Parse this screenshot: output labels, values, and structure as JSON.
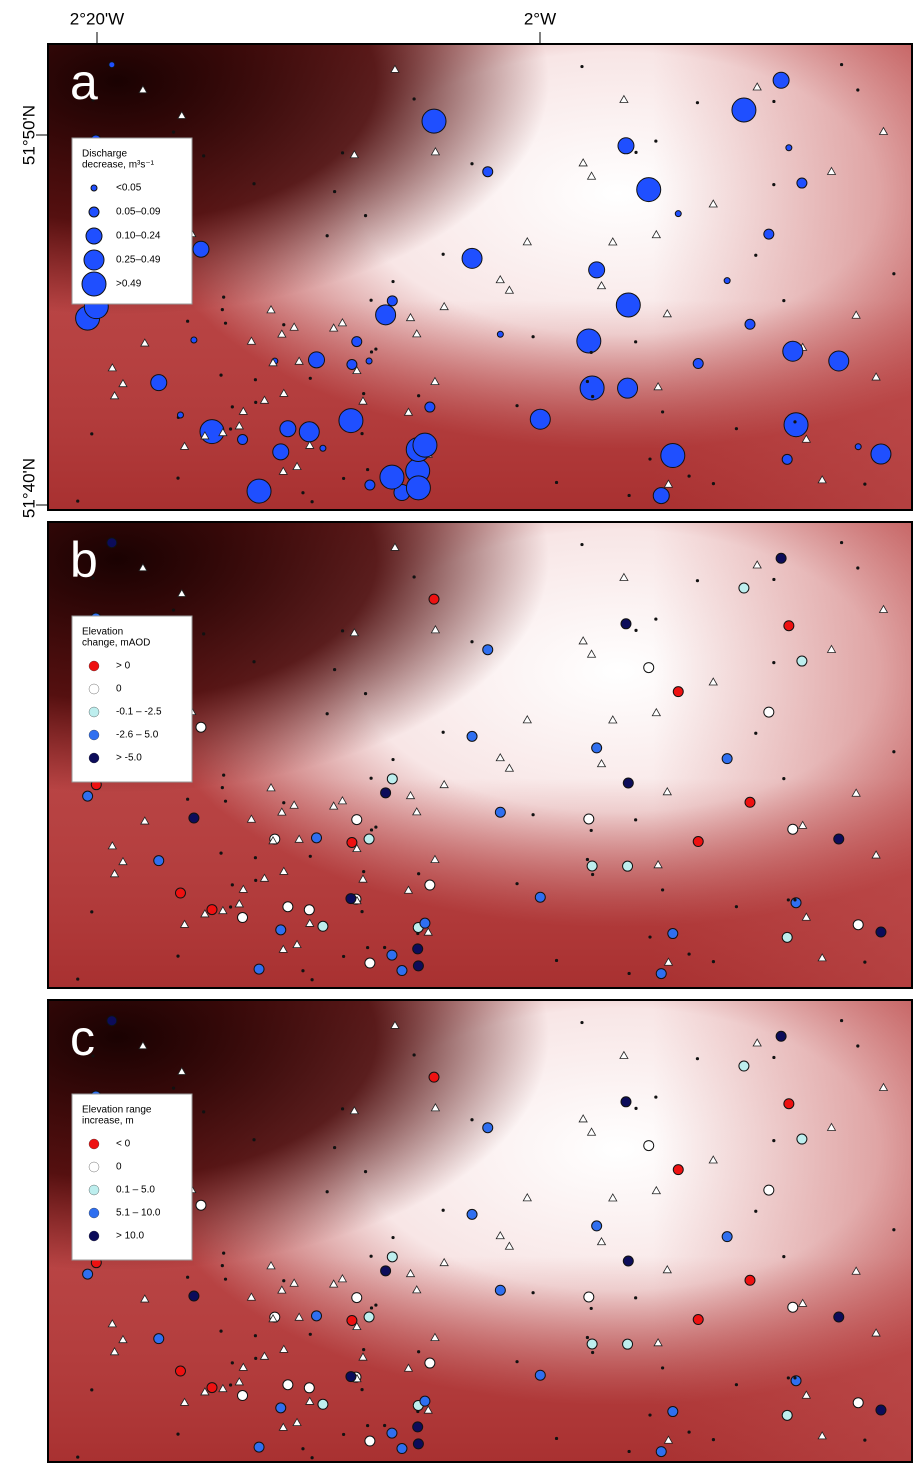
{
  "axes": {
    "x_labels": [
      "2°20'W",
      "2°W"
    ],
    "y_labels": [
      "51°50'N",
      "51°40'N"
    ]
  },
  "panels": [
    {
      "letter": "a",
      "legend": {
        "title_lines": [
          "Discharge",
          "decrease, m³s⁻¹"
        ],
        "items": [
          {
            "label": "<0.05",
            "color": "#1f4fff"
          },
          {
            "label": "0.05–0.09",
            "color": "#1f4fff"
          },
          {
            "label": "0.10–0.24",
            "color": "#1f4fff"
          },
          {
            "label": "0.25–0.49",
            "color": "#1f4fff"
          },
          {
            "label": ">0.49",
            "color": "#1f4fff"
          }
        ]
      }
    },
    {
      "letter": "b",
      "legend": {
        "title_lines": [
          "Elevation",
          "change, mAOD"
        ],
        "items": [
          {
            "label": "> 0",
            "color": "#ee1111"
          },
          {
            "label": "0",
            "color": "#ffffff"
          },
          {
            "label": "-0.1 – -2.5",
            "color": "#bdeeee"
          },
          {
            "label": "-2.6 – 5.0",
            "color": "#2f6ff0"
          },
          {
            "label": "> -5.0",
            "color": "#0c0c5a"
          }
        ]
      }
    },
    {
      "letter": "c",
      "legend": {
        "title_lines": [
          "Elevation range",
          "increase, m"
        ],
        "items": [
          {
            "label": "< 0",
            "color": "#ee1111"
          },
          {
            "label": "0",
            "color": "#ffffff"
          },
          {
            "label": "0.1 – 5.0",
            "color": "#bdeeee"
          },
          {
            "label": "5.1 – 10.0",
            "color": "#2f6ff0"
          },
          {
            "label": "> 10.0",
            "color": "#0c0c5a"
          }
        ]
      }
    }
  ]
}
